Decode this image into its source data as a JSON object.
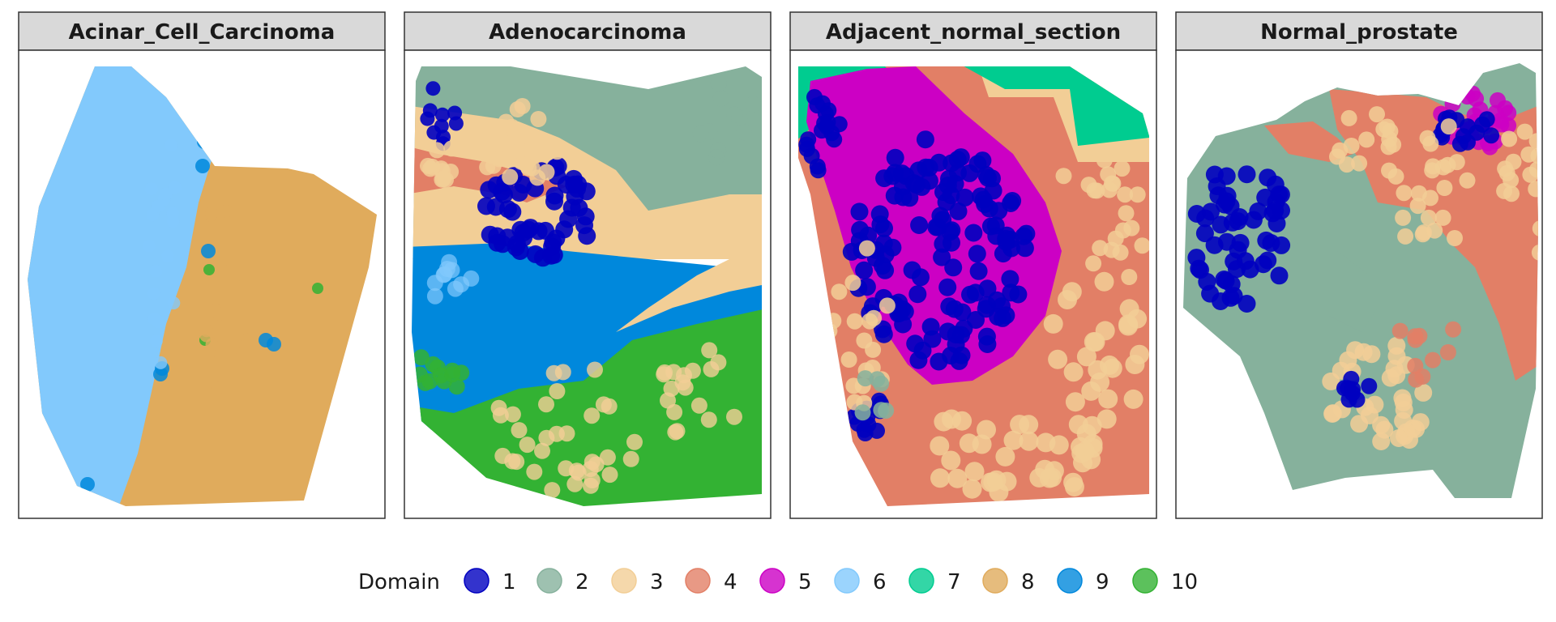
{
  "chart_data": {
    "type": "scatter",
    "facet_variable": "sample",
    "panels": [
      "Acinar_Cell_Carcinoma",
      "Adenocarcinoma",
      "Adjacent_normal_section",
      "Normal_prostate"
    ],
    "legend": {
      "title": "Domain",
      "position": "bottom",
      "items": [
        {
          "label": "1",
          "color": "#0000C0"
        },
        {
          "label": "2",
          "color": "#86B19C"
        },
        {
          "label": "3",
          "color": "#F2CE96"
        },
        {
          "label": "4",
          "color": "#E27F66"
        },
        {
          "label": "5",
          "color": "#CC00C4"
        },
        {
          "label": "6",
          "color": "#82C9FC"
        },
        {
          "label": "7",
          "color": "#00CC90"
        },
        {
          "label": "8",
          "color": "#E0AB5C"
        },
        {
          "label": "9",
          "color": "#0088DC"
        },
        {
          "label": "10",
          "color": "#33B233"
        }
      ]
    },
    "axes_visible": false,
    "grid": false
  }
}
